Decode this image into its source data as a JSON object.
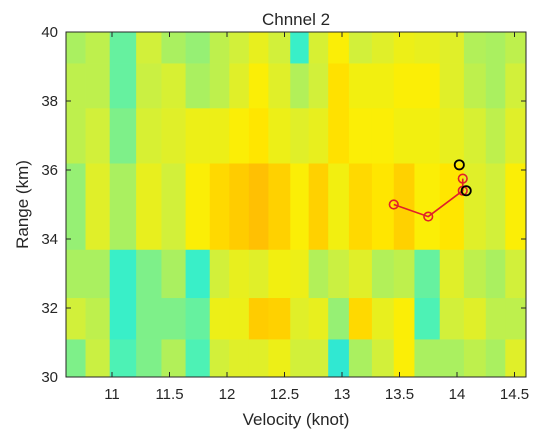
{
  "chart_data": {
    "type": "heatmap",
    "title": "Chnnel 2",
    "xlabel": "Velocity (knot)",
    "ylabel": "Range  (km)",
    "xlim": [
      10.6,
      14.6
    ],
    "ylim": [
      30,
      40
    ],
    "xticks": [
      11,
      11.5,
      12,
      12.5,
      13,
      13.5,
      14,
      14.5
    ],
    "yticks": [
      30,
      32,
      34,
      36,
      38,
      40
    ],
    "x_edges": [
      10.6,
      10.77,
      10.98,
      11.21,
      11.43,
      11.64,
      11.85,
      12.02,
      12.19,
      12.36,
      12.55,
      12.71,
      12.88,
      13.06,
      13.26,
      13.45,
      13.63,
      13.85,
      14.06,
      14.25,
      14.42,
      14.6
    ],
    "y_edges": [
      30,
      31.1,
      32.3,
      33.7,
      36.2,
      37.8,
      39.1,
      40
    ],
    "colormap": [
      "#1fd8e8",
      "#3cf2c4",
      "#8ff07a",
      "#d2f03a",
      "#ffee00",
      "#ffc400",
      "#ff9a1a"
    ],
    "values": [
      [
        0.3,
        0.48,
        0.2,
        0.3,
        0.42,
        0.2,
        0.5,
        0.55,
        0.55,
        0.6,
        0.5,
        0.5,
        0.1,
        0.4,
        0.5,
        0.65,
        0.4,
        0.4,
        0.45,
        0.4,
        0.55
      ],
      [
        0.5,
        0.45,
        0.15,
        0.3,
        0.3,
        0.25,
        0.6,
        0.6,
        0.8,
        0.78,
        0.55,
        0.58,
        0.35,
        0.75,
        0.58,
        0.65,
        0.2,
        0.5,
        0.55,
        0.45,
        0.45
      ],
      [
        0.4,
        0.4,
        0.15,
        0.3,
        0.4,
        0.15,
        0.5,
        0.58,
        0.55,
        0.62,
        0.6,
        0.42,
        0.48,
        0.55,
        0.42,
        0.45,
        0.25,
        0.55,
        0.45,
        0.4,
        0.5
      ],
      [
        0.35,
        0.55,
        0.4,
        0.58,
        0.5,
        0.65,
        0.75,
        0.8,
        0.85,
        0.78,
        0.65,
        0.78,
        0.62,
        0.75,
        0.7,
        0.78,
        0.65,
        0.7,
        0.55,
        0.5,
        0.65
      ],
      [
        0.45,
        0.5,
        0.3,
        0.52,
        0.55,
        0.6,
        0.6,
        0.65,
        0.7,
        0.6,
        0.55,
        0.58,
        0.72,
        0.65,
        0.65,
        0.62,
        0.62,
        0.58,
        0.52,
        0.45,
        0.55
      ],
      [
        0.45,
        0.45,
        0.25,
        0.48,
        0.52,
        0.4,
        0.45,
        0.55,
        0.65,
        0.55,
        0.42,
        0.5,
        0.72,
        0.62,
        0.62,
        0.65,
        0.65,
        0.55,
        0.45,
        0.4,
        0.5
      ],
      [
        0.4,
        0.45,
        0.25,
        0.5,
        0.4,
        0.35,
        0.45,
        0.5,
        0.58,
        0.5,
        0.15,
        0.52,
        0.65,
        0.5,
        0.55,
        0.6,
        0.58,
        0.55,
        0.42,
        0.4,
        0.45
      ]
    ],
    "overlay_track": {
      "color": "#e0202a",
      "points": [
        [
          13.45,
          35.0
        ],
        [
          13.75,
          34.65
        ],
        [
          14.05,
          35.4
        ],
        [
          14.05,
          35.75
        ]
      ]
    },
    "overlay_circles": {
      "color": "#000000",
      "points": [
        [
          14.02,
          36.15
        ],
        [
          14.08,
          35.4
        ]
      ]
    }
  }
}
